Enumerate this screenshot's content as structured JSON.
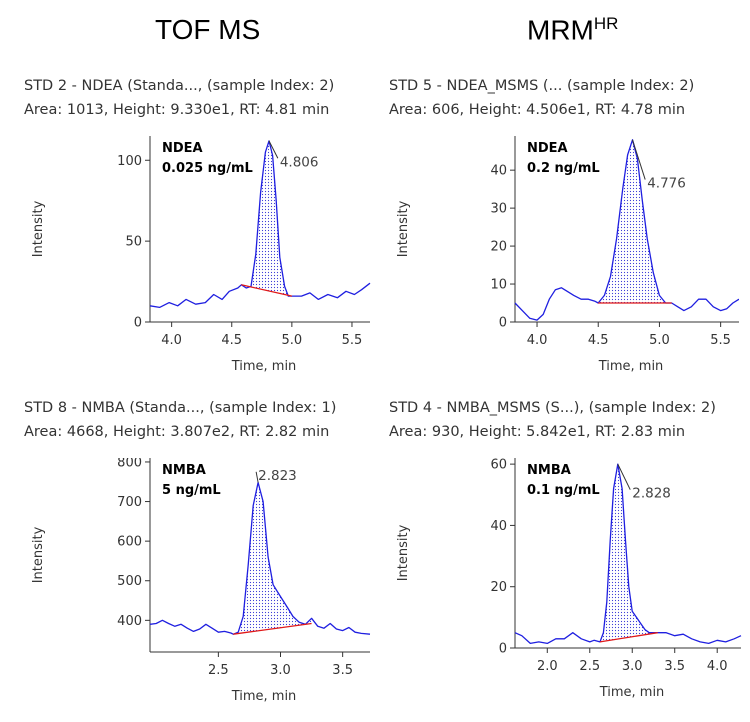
{
  "column_titles": {
    "left": "TOF MS",
    "right_main": "MRM",
    "right_sup": "HR"
  },
  "chart_data": [
    {
      "type": "line",
      "header_line1": "STD 2 - NDEA (Standa..., (sample Index: 2)",
      "header_line2": "Area: 1013, Height: 9.330e1, RT: 4.81 min",
      "xlabel": "Time, min",
      "ylabel": "Intensity",
      "xlim": [
        3.82,
        5.65
      ],
      "ylim": [
        0,
        115
      ],
      "xticks": [
        4.0,
        4.5,
        5.0,
        5.5
      ],
      "xtick_labels": [
        "4.0",
        "4.5",
        "5.0",
        "5.5"
      ],
      "yticks": [
        0,
        50,
        100
      ],
      "ytick_labels": [
        "0",
        "50",
        "100"
      ],
      "annotation": [
        "NDEA",
        "0.025 ng/mL"
      ],
      "peak_label": "4.806",
      "peak_label_pos": [
        4.9,
        100
      ],
      "apex": [
        4.81,
        112
      ],
      "baseline": [
        [
          4.58,
          23
        ],
        [
          5.0,
          16
        ]
      ],
      "trace": [
        [
          3.82,
          10
        ],
        [
          3.9,
          9
        ],
        [
          3.98,
          12
        ],
        [
          4.05,
          10
        ],
        [
          4.12,
          14
        ],
        [
          4.2,
          11
        ],
        [
          4.28,
          12
        ],
        [
          4.35,
          17
        ],
        [
          4.42,
          14
        ],
        [
          4.48,
          19
        ],
        [
          4.55,
          21
        ],
        [
          4.58,
          23
        ],
        [
          4.62,
          21
        ],
        [
          4.66,
          22
        ],
        [
          4.7,
          42
        ],
        [
          4.74,
          80
        ],
        [
          4.78,
          105
        ],
        [
          4.81,
          112
        ],
        [
          4.84,
          103
        ],
        [
          4.87,
          75
        ],
        [
          4.9,
          40
        ],
        [
          4.94,
          22
        ],
        [
          4.97,
          16
        ],
        [
          5.0,
          16
        ],
        [
          5.08,
          16
        ],
        [
          5.15,
          18
        ],
        [
          5.22,
          14
        ],
        [
          5.3,
          17
        ],
        [
          5.38,
          15
        ],
        [
          5.45,
          19
        ],
        [
          5.52,
          17
        ],
        [
          5.58,
          20
        ],
        [
          5.65,
          24
        ]
      ]
    },
    {
      "type": "line",
      "header_line1": "STD 5 - NDEA_MSMS (... (sample Index: 2)",
      "header_line2": "Area: 606, Height: 4.506e1, RT: 4.78 min",
      "xlabel": "Time, min",
      "ylabel": "Intensity",
      "xlim": [
        3.82,
        5.65
      ],
      "ylim": [
        0,
        49
      ],
      "xticks": [
        4.0,
        4.5,
        5.0,
        5.5
      ],
      "xtick_labels": [
        "4.0",
        "4.5",
        "5.0",
        "5.5"
      ],
      "yticks": [
        0,
        10,
        20,
        30,
        40
      ],
      "ytick_labels": [
        "0",
        "10",
        "20",
        "30",
        "40"
      ],
      "annotation": [
        "NDEA",
        "0.2 ng/mL"
      ],
      "peak_label": "4.776",
      "peak_label_pos": [
        4.9,
        37
      ],
      "apex": [
        4.78,
        48
      ],
      "baseline": [
        [
          4.5,
          5
        ],
        [
          5.1,
          5
        ]
      ],
      "trace": [
        [
          3.82,
          5
        ],
        [
          3.88,
          3
        ],
        [
          3.94,
          1
        ],
        [
          4.0,
          0.5
        ],
        [
          4.05,
          2
        ],
        [
          4.1,
          6
        ],
        [
          4.15,
          8.5
        ],
        [
          4.2,
          9
        ],
        [
          4.25,
          8
        ],
        [
          4.3,
          7
        ],
        [
          4.36,
          6
        ],
        [
          4.42,
          6
        ],
        [
          4.47,
          5.5
        ],
        [
          4.5,
          5
        ],
        [
          4.55,
          7
        ],
        [
          4.6,
          12
        ],
        [
          4.65,
          22
        ],
        [
          4.7,
          35
        ],
        [
          4.74,
          44
        ],
        [
          4.78,
          48
        ],
        [
          4.82,
          43
        ],
        [
          4.86,
          32
        ],
        [
          4.9,
          22
        ],
        [
          4.95,
          13
        ],
        [
          5.0,
          7
        ],
        [
          5.05,
          5
        ],
        [
          5.1,
          5
        ],
        [
          5.15,
          4
        ],
        [
          5.2,
          3
        ],
        [
          5.26,
          4
        ],
        [
          5.32,
          6
        ],
        [
          5.38,
          6
        ],
        [
          5.44,
          4
        ],
        [
          5.5,
          3
        ],
        [
          5.55,
          3.5
        ],
        [
          5.6,
          5
        ],
        [
          5.65,
          6
        ]
      ]
    },
    {
      "type": "line",
      "header_line1": "STD 8 - NMBA (Standa..., (sample Index: 1)",
      "header_line2": "Area: 4668, Height: 3.807e2, RT: 2.82 min",
      "xlabel": "Time, min",
      "ylabel": "Intensity",
      "xlim": [
        1.95,
        3.72
      ],
      "ylim": [
        320,
        810
      ],
      "xticks": [
        2.5,
        3.0,
        3.5
      ],
      "xtick_labels": [
        "2.5",
        "3.0",
        "3.5"
      ],
      "yticks": [
        400,
        500,
        600,
        700,
        800
      ],
      "ytick_labels": [
        "400",
        "500",
        "600",
        "700",
        "800"
      ],
      "annotation": [
        "NMBA",
        "5 ng/mL"
      ],
      "peak_label": "2.823",
      "peak_label_pos": [
        2.82,
        770
      ],
      "apex": [
        2.82,
        748
      ],
      "baseline": [
        [
          2.62,
          365
        ],
        [
          3.25,
          392
        ]
      ],
      "trace": [
        [
          1.95,
          390
        ],
        [
          2.0,
          392
        ],
        [
          2.05,
          400
        ],
        [
          2.1,
          392
        ],
        [
          2.15,
          385
        ],
        [
          2.2,
          390
        ],
        [
          2.25,
          380
        ],
        [
          2.3,
          372
        ],
        [
          2.35,
          378
        ],
        [
          2.4,
          390
        ],
        [
          2.45,
          380
        ],
        [
          2.5,
          370
        ],
        [
          2.55,
          372
        ],
        [
          2.6,
          368
        ],
        [
          2.62,
          365
        ],
        [
          2.66,
          370
        ],
        [
          2.7,
          410
        ],
        [
          2.74,
          540
        ],
        [
          2.78,
          690
        ],
        [
          2.82,
          748
        ],
        [
          2.86,
          700
        ],
        [
          2.9,
          560
        ],
        [
          2.94,
          490
        ],
        [
          2.98,
          470
        ],
        [
          3.02,
          450
        ],
        [
          3.06,
          430
        ],
        [
          3.1,
          410
        ],
        [
          3.15,
          395
        ],
        [
          3.2,
          390
        ],
        [
          3.25,
          405
        ],
        [
          3.3,
          385
        ],
        [
          3.35,
          380
        ],
        [
          3.4,
          392
        ],
        [
          3.45,
          378
        ],
        [
          3.5,
          374
        ],
        [
          3.55,
          382
        ],
        [
          3.6,
          370
        ],
        [
          3.65,
          367
        ],
        [
          3.72,
          365
        ]
      ]
    },
    {
      "type": "line",
      "header_line1": "STD 4 - NMBA_MSMS (S...), (sample Index: 2)",
      "header_line2": "Area: 930, Height: 5.842e1, RT: 2.83 min",
      "xlabel": "Time, min",
      "ylabel": "Intensity",
      "xlim": [
        1.62,
        4.28
      ],
      "ylim": [
        0,
        62
      ],
      "xticks": [
        2.0,
        2.5,
        3.0,
        3.5,
        4.0
      ],
      "xtick_labels": [
        "2.0",
        "2.5",
        "3.0",
        "3.5",
        "4.0"
      ],
      "yticks": [
        0,
        20,
        40,
        60
      ],
      "ytick_labels": [
        "0",
        "20",
        "40",
        "60"
      ],
      "annotation": [
        "NMBA",
        "0.1 ng/mL"
      ],
      "peak_label": "2.828",
      "peak_label_pos": [
        3.0,
        51
      ],
      "apex": [
        2.83,
        60
      ],
      "baseline": [
        [
          2.62,
          2
        ],
        [
          3.3,
          5
        ]
      ],
      "trace": [
        [
          1.62,
          5
        ],
        [
          1.7,
          4
        ],
        [
          1.8,
          1.5
        ],
        [
          1.9,
          2
        ],
        [
          2.0,
          1.5
        ],
        [
          2.1,
          3
        ],
        [
          2.2,
          3
        ],
        [
          2.3,
          5
        ],
        [
          2.4,
          3
        ],
        [
          2.5,
          2
        ],
        [
          2.55,
          2.5
        ],
        [
          2.62,
          2
        ],
        [
          2.66,
          5
        ],
        [
          2.7,
          15
        ],
        [
          2.74,
          35
        ],
        [
          2.78,
          52
        ],
        [
          2.83,
          60
        ],
        [
          2.88,
          52
        ],
        [
          2.92,
          35
        ],
        [
          2.96,
          20
        ],
        [
          3.0,
          12
        ],
        [
          3.05,
          10
        ],
        [
          3.1,
          8
        ],
        [
          3.15,
          6
        ],
        [
          3.2,
          5
        ],
        [
          3.25,
          5
        ],
        [
          3.3,
          5
        ],
        [
          3.4,
          5
        ],
        [
          3.5,
          4
        ],
        [
          3.6,
          4.5
        ],
        [
          3.7,
          3
        ],
        [
          3.8,
          2
        ],
        [
          3.9,
          1.5
        ],
        [
          4.0,
          2.5
        ],
        [
          4.1,
          2
        ],
        [
          4.2,
          3
        ],
        [
          4.28,
          4
        ]
      ]
    }
  ]
}
